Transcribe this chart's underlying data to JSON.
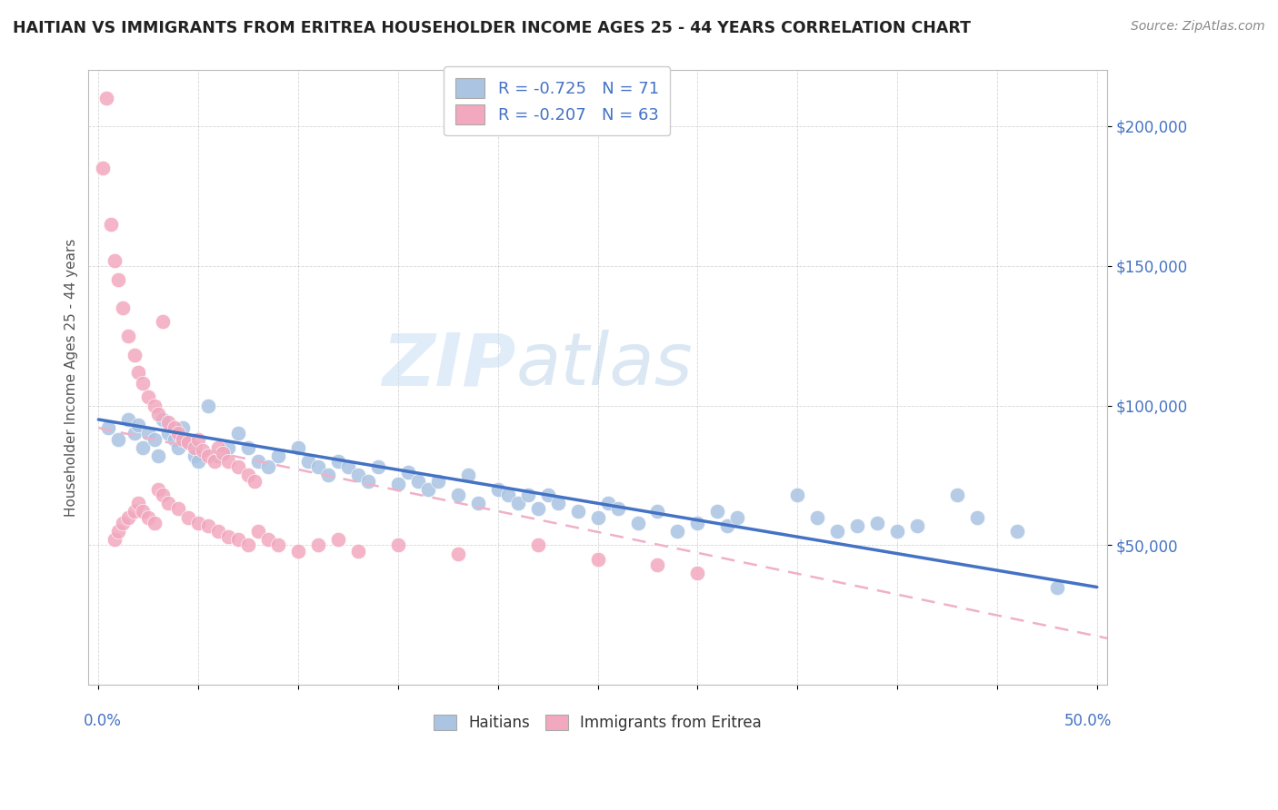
{
  "title": "HAITIAN VS IMMIGRANTS FROM ERITREA HOUSEHOLDER INCOME AGES 25 - 44 YEARS CORRELATION CHART",
  "source": "Source: ZipAtlas.com",
  "ylabel": "Householder Income Ages 25 - 44 years",
  "xlim": [
    -0.005,
    0.505
  ],
  "ylim": [
    0,
    220000
  ],
  "color_blue": "#aac4e2",
  "color_pink": "#f2a8be",
  "color_blue_dark": "#4472c4",
  "color_pink_dark": "#e07090",
  "color_line_pink_dashed": "#f0b0c8",
  "watermark_zip": "ZIP",
  "watermark_atlas": "atlas",
  "legend_r1": "-0.725",
  "legend_n1": "71",
  "legend_r2": "-0.207",
  "legend_n2": "63",
  "blue_x": [
    0.005,
    0.01,
    0.015,
    0.018,
    0.02,
    0.022,
    0.025,
    0.028,
    0.03,
    0.032,
    0.035,
    0.038,
    0.04,
    0.042,
    0.045,
    0.048,
    0.05,
    0.055,
    0.06,
    0.065,
    0.07,
    0.075,
    0.08,
    0.085,
    0.09,
    0.1,
    0.105,
    0.11,
    0.115,
    0.12,
    0.125,
    0.13,
    0.135,
    0.14,
    0.15,
    0.155,
    0.16,
    0.165,
    0.17,
    0.18,
    0.185,
    0.19,
    0.2,
    0.205,
    0.21,
    0.215,
    0.22,
    0.225,
    0.23,
    0.24,
    0.25,
    0.255,
    0.26,
    0.27,
    0.28,
    0.29,
    0.3,
    0.31,
    0.315,
    0.32,
    0.35,
    0.36,
    0.37,
    0.38,
    0.39,
    0.4,
    0.41,
    0.43,
    0.44,
    0.46,
    0.48
  ],
  "blue_y": [
    92000,
    88000,
    95000,
    90000,
    93000,
    85000,
    90000,
    88000,
    82000,
    95000,
    90000,
    88000,
    85000,
    92000,
    87000,
    82000,
    80000,
    100000,
    82000,
    85000,
    90000,
    85000,
    80000,
    78000,
    82000,
    85000,
    80000,
    78000,
    75000,
    80000,
    78000,
    75000,
    73000,
    78000,
    72000,
    76000,
    73000,
    70000,
    73000,
    68000,
    75000,
    65000,
    70000,
    68000,
    65000,
    68000,
    63000,
    68000,
    65000,
    62000,
    60000,
    65000,
    63000,
    58000,
    62000,
    55000,
    58000,
    62000,
    57000,
    60000,
    68000,
    60000,
    55000,
    57000,
    58000,
    55000,
    57000,
    68000,
    60000,
    55000,
    35000
  ],
  "pink_x": [
    0.002,
    0.004,
    0.006,
    0.008,
    0.01,
    0.012,
    0.015,
    0.018,
    0.02,
    0.022,
    0.025,
    0.028,
    0.03,
    0.032,
    0.035,
    0.038,
    0.04,
    0.042,
    0.045,
    0.048,
    0.05,
    0.052,
    0.055,
    0.058,
    0.06,
    0.062,
    0.065,
    0.07,
    0.075,
    0.078,
    0.008,
    0.01,
    0.012,
    0.015,
    0.018,
    0.02,
    0.022,
    0.025,
    0.028,
    0.03,
    0.032,
    0.035,
    0.04,
    0.045,
    0.05,
    0.055,
    0.06,
    0.065,
    0.07,
    0.075,
    0.08,
    0.085,
    0.09,
    0.1,
    0.11,
    0.12,
    0.13,
    0.15,
    0.18,
    0.22,
    0.25,
    0.28,
    0.3
  ],
  "pink_y": [
    185000,
    210000,
    165000,
    152000,
    145000,
    135000,
    125000,
    118000,
    112000,
    108000,
    103000,
    100000,
    97000,
    130000,
    94000,
    92000,
    90000,
    88000,
    87000,
    85000,
    88000,
    84000,
    82000,
    80000,
    85000,
    83000,
    80000,
    78000,
    75000,
    73000,
    52000,
    55000,
    58000,
    60000,
    62000,
    65000,
    62000,
    60000,
    58000,
    70000,
    68000,
    65000,
    63000,
    60000,
    58000,
    57000,
    55000,
    53000,
    52000,
    50000,
    55000,
    52000,
    50000,
    48000,
    50000,
    52000,
    48000,
    50000,
    47000,
    50000,
    45000,
    43000,
    40000
  ]
}
